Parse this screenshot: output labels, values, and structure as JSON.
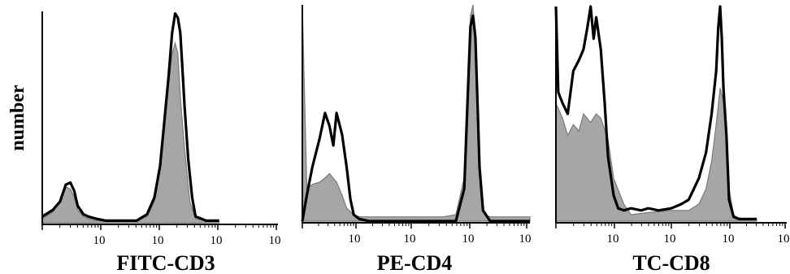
{
  "ylabel": "number",
  "chart_data": [
    {
      "type": "area",
      "xlabel": "FITC-CD3",
      "x_scale": "log",
      "tick_labels": [
        "10",
        "10",
        "10",
        "10"
      ],
      "series": [
        {
          "style": "filled",
          "color": "#a6a6a6",
          "x": [
            1,
            1.5,
            2,
            2.5,
            3,
            3.5,
            4,
            5,
            6,
            8,
            12,
            20,
            40,
            60,
            80,
            100,
            120,
            140,
            160,
            180,
            200,
            220,
            260,
            320,
            400,
            600,
            1000
          ],
          "y": [
            0.02,
            0.05,
            0.1,
            0.17,
            0.16,
            0.12,
            0.06,
            0.03,
            0.02,
            0.01,
            0.01,
            0.01,
            0.01,
            0.03,
            0.1,
            0.25,
            0.47,
            0.66,
            0.8,
            0.85,
            0.8,
            0.6,
            0.35,
            0.1,
            0.02,
            0.01,
            0.01
          ]
        },
        {
          "style": "outline",
          "color": "#000000",
          "x": [
            1,
            1.5,
            2,
            2.5,
            3,
            3.5,
            4,
            5,
            6,
            8,
            12,
            20,
            40,
            60,
            80,
            100,
            120,
            140,
            160,
            180,
            200,
            220,
            240,
            260,
            300,
            350,
            400,
            600,
            1000
          ],
          "y": [
            0.03,
            0.06,
            0.1,
            0.18,
            0.19,
            0.15,
            0.08,
            0.04,
            0.03,
            0.02,
            0.01,
            0.01,
            0.01,
            0.04,
            0.12,
            0.27,
            0.5,
            0.7,
            0.9,
            0.99,
            0.97,
            0.9,
            0.72,
            0.55,
            0.3,
            0.12,
            0.03,
            0.01,
            0.01
          ]
        }
      ]
    },
    {
      "type": "area",
      "xlabel": "PE-CD4",
      "x_scale": "log",
      "tick_labels": [
        "10",
        "10",
        "10",
        "10"
      ],
      "series": [
        {
          "style": "filled",
          "color": "#a6a6a6",
          "x": [
            1,
            1.2,
            1.5,
            2,
            2.5,
            3,
            4,
            5,
            6,
            8,
            10,
            15,
            30,
            100,
            300,
            500,
            700,
            800,
            900,
            1000,
            1100,
            1200,
            1300,
            1400,
            1600,
            2000,
            3000,
            10000
          ],
          "y": [
            1.0,
            0.15,
            0.17,
            0.18,
            0.2,
            0.22,
            0.18,
            0.12,
            0.06,
            0.03,
            0.02,
            0.02,
            0.02,
            0.02,
            0.02,
            0.03,
            0.2,
            0.6,
            0.95,
            1.0,
            0.85,
            0.55,
            0.25,
            0.1,
            0.03,
            0.02,
            0.02,
            0.02
          ]
        },
        {
          "style": "outline",
          "color": "#000000",
          "x": [
            1,
            1.2,
            1.5,
            2,
            2.5,
            3,
            3.5,
            4,
            5,
            6,
            7,
            8,
            10,
            15,
            100,
            500,
            700,
            800,
            900,
            1000,
            1100,
            1200,
            1300,
            1500,
            2000,
            10000
          ],
          "y": [
            0.0,
            0.12,
            0.25,
            0.38,
            0.5,
            0.44,
            0.35,
            0.5,
            0.4,
            0.25,
            0.1,
            0.03,
            0.01,
            0.0,
            0.0,
            0.0,
            0.15,
            0.55,
            0.9,
            0.95,
            0.85,
            0.55,
            0.25,
            0.05,
            0.0,
            0.0
          ]
        }
      ]
    },
    {
      "type": "area",
      "xlabel": "TC-CD8",
      "x_scale": "log",
      "tick_labels": [
        "10",
        "10",
        "10",
        "10"
      ],
      "series": [
        {
          "style": "filled",
          "color": "#a6a6a6",
          "x": [
            1,
            1.3,
            1.6,
            2,
            2.5,
            3,
            4,
            5,
            6,
            8,
            10,
            15,
            20,
            40,
            100,
            200,
            300,
            400,
            500,
            600,
            700,
            800,
            900,
            1000,
            1200,
            1500,
            3000
          ],
          "y": [
            0.55,
            0.48,
            0.4,
            0.45,
            0.42,
            0.5,
            0.46,
            0.5,
            0.48,
            0.38,
            0.2,
            0.08,
            0.03,
            0.04,
            0.05,
            0.05,
            0.08,
            0.15,
            0.28,
            0.45,
            0.62,
            0.56,
            0.35,
            0.15,
            0.03,
            0.01,
            0.01
          ]
        },
        {
          "style": "outline",
          "color": "#000000",
          "x": [
            1,
            1.1,
            1.3,
            1.6,
            2,
            2.5,
            3,
            3.5,
            4,
            4.5,
            5,
            6,
            7,
            8,
            10,
            12,
            15,
            20,
            30,
            40,
            60,
            100,
            150,
            200,
            300,
            400,
            500,
            600,
            650,
            700,
            750,
            800,
            900,
            1000,
            1200,
            1500,
            3000
          ],
          "y": [
            1.0,
            0.6,
            0.55,
            0.5,
            0.7,
            0.75,
            0.8,
            0.9,
            1.0,
            0.85,
            0.95,
            0.8,
            0.55,
            0.3,
            0.12,
            0.06,
            0.05,
            0.06,
            0.05,
            0.06,
            0.05,
            0.06,
            0.08,
            0.1,
            0.2,
            0.32,
            0.5,
            0.7,
            0.9,
            1.0,
            0.85,
            0.62,
            0.4,
            0.1,
            0.02,
            0.01,
            0.01
          ]
        }
      ]
    }
  ]
}
